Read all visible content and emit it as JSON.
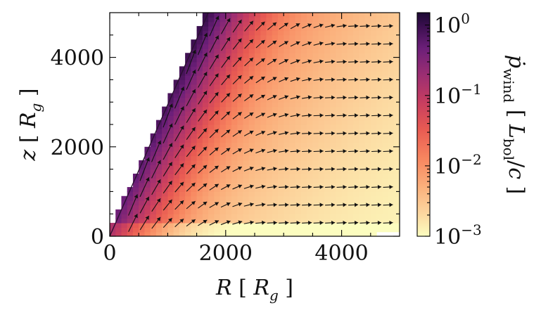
{
  "chart_data": {
    "type": "heatmap",
    "title": "",
    "x_axis": {
      "label": "R [ R_g ]",
      "range": [
        0,
        5000
      ],
      "ticks": [
        0,
        2000,
        4000
      ],
      "tick_labels": [
        "0",
        "2000",
        "4000"
      ]
    },
    "y_axis": {
      "label": "z [ R_g ]",
      "range": [
        0,
        5000
      ],
      "ticks": [
        0,
        2000,
        4000
      ],
      "tick_labels": [
        "0",
        "2000",
        "4000"
      ]
    },
    "colorbar": {
      "label": "ṗ_wind [ L_bol / c ]",
      "scale": "log",
      "range": [
        0.001,
        1.5
      ],
      "ticks": [
        0.001,
        0.01,
        0.1,
        1
      ],
      "tick_labels": [
        "10^-3",
        "10^-2",
        "10^-1",
        "10^0"
      ],
      "colormap": [
        "#fcfdbf",
        "#fcd8a0",
        "#fbb07c",
        "#f7855f",
        "#e85a52",
        "#c73d60",
        "#9c2e72",
        "#6c1f79",
        "#3b0f4f",
        "#1c0a33"
      ]
    },
    "wind_boundary": {
      "description": "left edge of the wind region (z as function of R)",
      "points": [
        [
          0,
          0
        ],
        [
          1700,
          5000
        ]
      ]
    },
    "field": {
      "description": "wind momentum flux, highest along the left boundary, decaying outward",
      "peak_value": 1.0,
      "background_value": 0.001
    },
    "vectors": {
      "description": "velocity arrows on a grid, elongated and parallel to the boundary near the edge, becoming short and flatter at large R",
      "grid_R": [
        400,
        600,
        800,
        1000,
        1200,
        1400,
        1600,
        1800,
        2000,
        2200,
        2400,
        2600,
        2800,
        3000,
        3200,
        3400,
        3600,
        3800,
        4000,
        4200,
        4400,
        4600,
        4800
      ],
      "grid_z": [
        300,
        700,
        1100,
        1500,
        1900,
        2300,
        2700,
        3100,
        3500,
        3900,
        4300,
        4700
      ]
    },
    "grid": false,
    "legend": "none"
  }
}
